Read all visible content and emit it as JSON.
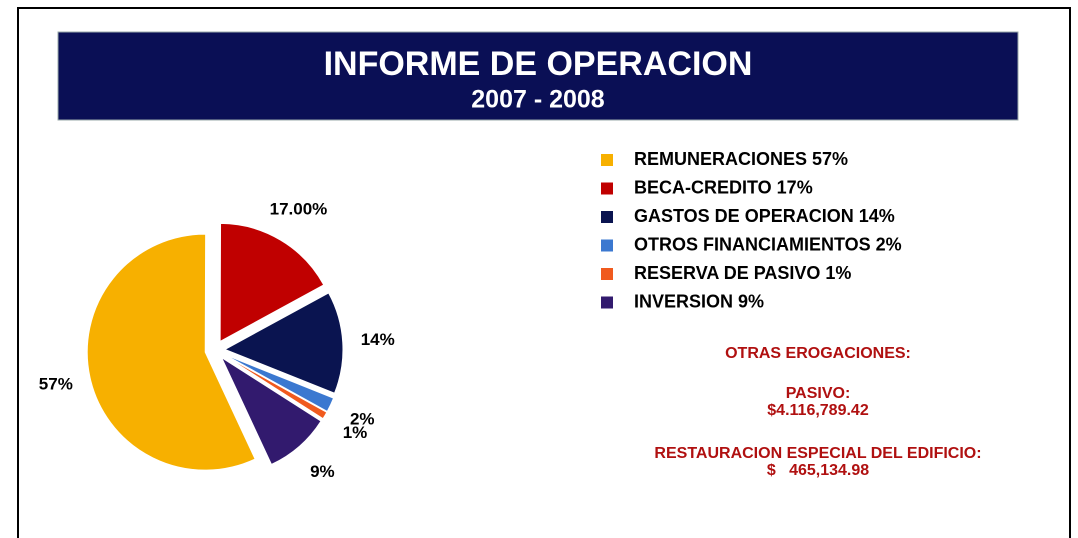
{
  "chart_data": {
    "type": "pie",
    "title": "INFORME DE OPERACION",
    "subtitle": "2007 - 2008",
    "categories": [
      "REMUNERACIONES 57%",
      "BECA-CREDITO 17%",
      "GASTOS DE OPERACION 14%",
      "OTROS FINANCIAMIENTOS 2%",
      "RESERVA DE PASIVO 1%",
      "INVERSION 9%"
    ],
    "values": [
      57,
      17,
      14,
      2,
      1,
      9
    ],
    "value_labels": [
      "57%",
      "17.00%",
      "14%",
      "2%",
      "1%",
      "9%"
    ],
    "colors": [
      "#f7b000",
      "#c00000",
      "#0a1450",
      "#3b78d0",
      "#f05a1e",
      "#321a6e"
    ],
    "legend": "right",
    "annotations": [
      "OTRAS EROGACIONES:",
      "PASIVO:",
      "$4.116,789.42",
      "RESTAURACION ESPECIAL DEL EDIFICIO:",
      "$   465,134.98"
    ]
  }
}
